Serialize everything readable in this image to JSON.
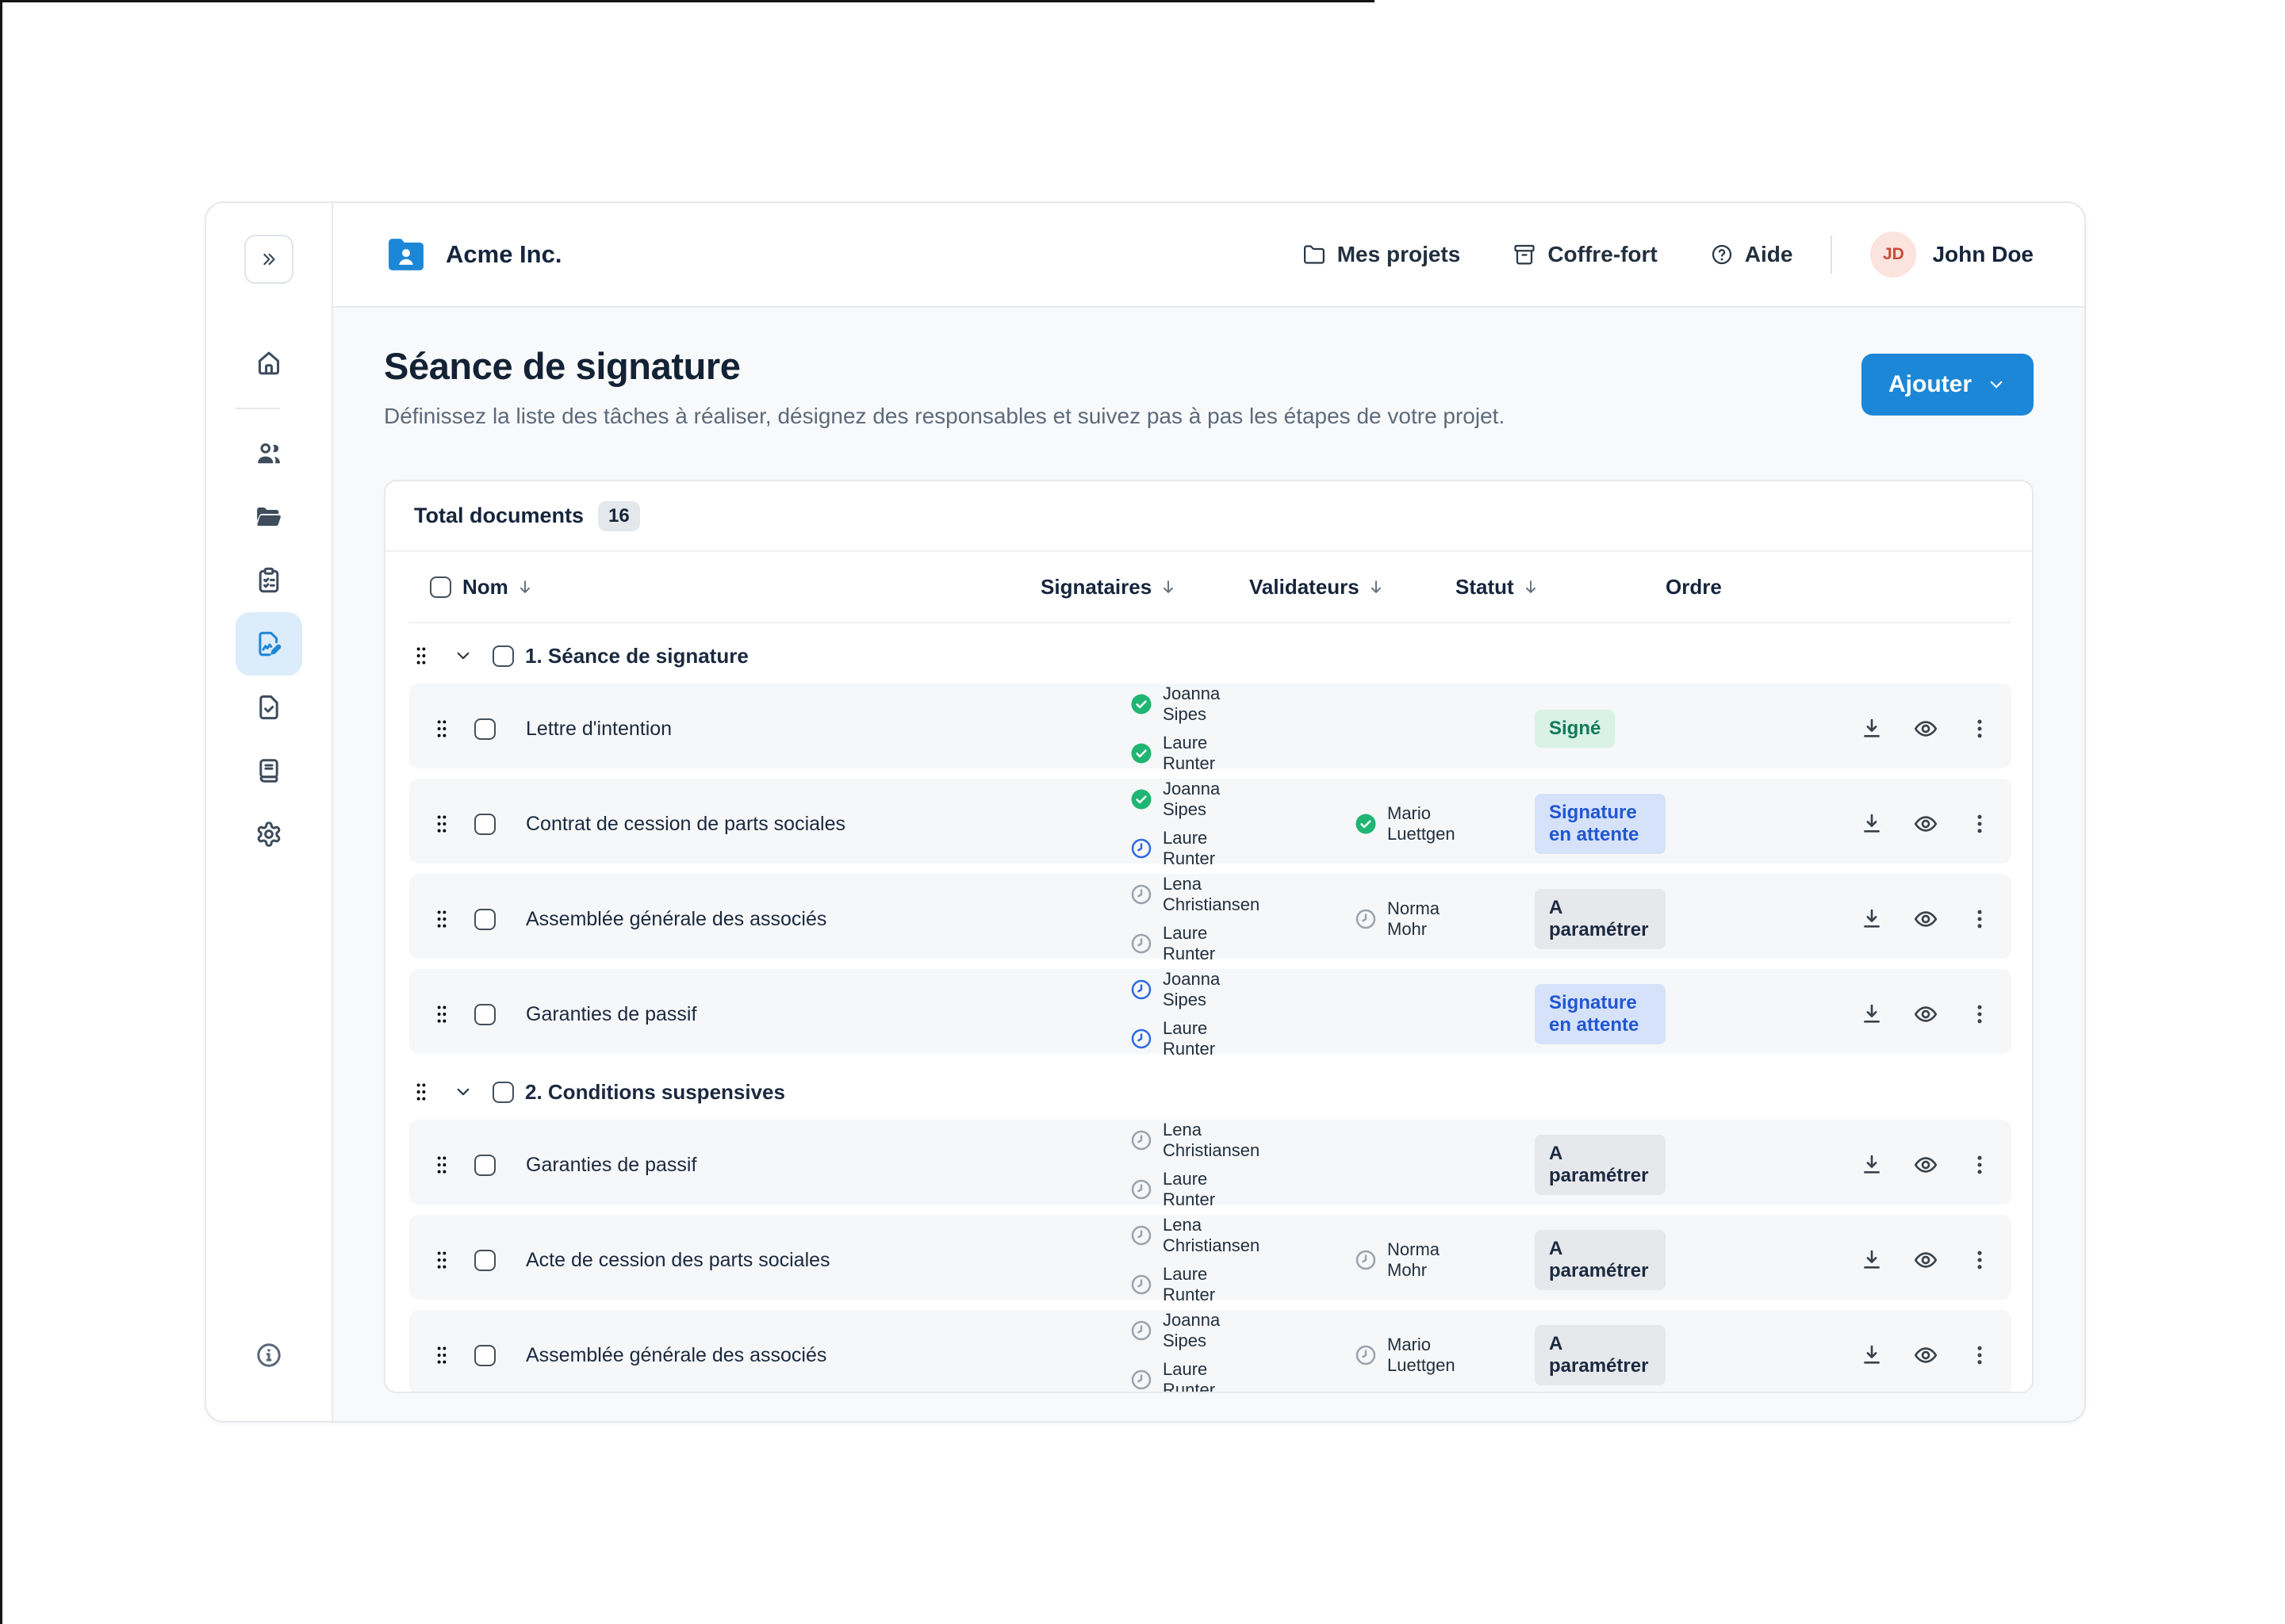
{
  "header": {
    "company": "Acme Inc.",
    "nav": [
      {
        "id": "mes-projets",
        "label": "Mes projets",
        "icon": "folder"
      },
      {
        "id": "coffre-fort",
        "label": "Coffre-fort",
        "icon": "vault"
      },
      {
        "id": "aide",
        "label": "Aide",
        "icon": "help"
      }
    ],
    "user": {
      "initials": "JD",
      "name": "John Doe"
    }
  },
  "sidebar": {
    "items": [
      {
        "id": "home",
        "icon": "home",
        "active": false
      },
      {
        "id": "contacts",
        "icon": "users",
        "active": false
      },
      {
        "id": "documents",
        "icon": "folder-open",
        "active": false
      },
      {
        "id": "tasks",
        "icon": "clipboard-list",
        "active": false
      },
      {
        "id": "signature",
        "icon": "file-pen",
        "active": true
      },
      {
        "id": "validated-docs",
        "icon": "file-check",
        "active": false
      },
      {
        "id": "registers",
        "icon": "book",
        "active": false
      },
      {
        "id": "settings",
        "icon": "settings",
        "active": false
      }
    ]
  },
  "page": {
    "title": "Séance de signature",
    "subtitle": "Définissez la liste des tâches à réaliser, désignez des responsables et suivez pas à pas les étapes de votre projet.",
    "add_button_label": "Ajouter"
  },
  "table": {
    "summary_label": "Total documents",
    "summary_count": "16",
    "columns": [
      {
        "id": "nom",
        "label": "Nom",
        "sortable": true
      },
      {
        "id": "signataires",
        "label": "Signataires",
        "sortable": true
      },
      {
        "id": "validateurs",
        "label": "Validateurs",
        "sortable": true
      },
      {
        "id": "statut",
        "label": "Statut",
        "sortable": true
      },
      {
        "id": "ordre",
        "label": "Ordre",
        "sortable": false
      }
    ],
    "groups": [
      {
        "label": "1. Séance de signature",
        "documents": [
          {
            "name": "Lettre d'intention",
            "signataires": [
              {
                "name": "Joanna Sipes",
                "status": "signed"
              },
              {
                "name": "Laure Runter",
                "status": "signed"
              }
            ],
            "validateurs": [],
            "statut": {
              "label": "Signé",
              "type": "signed"
            }
          },
          {
            "name": "Contrat de cession de parts sociales",
            "signataires": [
              {
                "name": "Joanna Sipes",
                "status": "signed"
              },
              {
                "name": "Laure Runter",
                "status": "waiting"
              }
            ],
            "validateurs": [
              {
                "name": "Mario Luettgen",
                "status": "signed"
              }
            ],
            "statut": {
              "label": "Signature en attente",
              "type": "waiting"
            }
          },
          {
            "name": "Assemblée générale des associés",
            "signataires": [
              {
                "name": "Lena Christiansen",
                "status": "todo"
              },
              {
                "name": "Laure Runter",
                "status": "todo"
              }
            ],
            "validateurs": [
              {
                "name": "Norma Mohr",
                "status": "todo"
              }
            ],
            "statut": {
              "label": "A paramétrer",
              "type": "setup"
            }
          },
          {
            "name": "Garanties de passif",
            "signataires": [
              {
                "name": "Joanna Sipes",
                "status": "waiting"
              },
              {
                "name": "Laure Runter",
                "status": "waiting"
              }
            ],
            "validateurs": [],
            "statut": {
              "label": "Signature en attente",
              "type": "waiting"
            }
          }
        ]
      },
      {
        "label": "2. Conditions suspensives",
        "documents": [
          {
            "name": "Garanties de passif",
            "signataires": [
              {
                "name": "Lena Christiansen",
                "status": "todo"
              },
              {
                "name": "Laure Runter",
                "status": "todo"
              }
            ],
            "validateurs": [],
            "statut": {
              "label": "A paramétrer",
              "type": "setup"
            }
          },
          {
            "name": "Acte de cession des parts sociales",
            "signataires": [
              {
                "name": "Lena Christiansen",
                "status": "todo"
              },
              {
                "name": "Laure Runter",
                "status": "todo"
              }
            ],
            "validateurs": [
              {
                "name": "Norma Mohr",
                "status": "todo"
              }
            ],
            "statut": {
              "label": "A paramétrer",
              "type": "setup"
            }
          },
          {
            "name": "Assemblée générale des associés",
            "signataires": [
              {
                "name": "Joanna Sipes",
                "status": "todo"
              },
              {
                "name": "Laure Runter",
                "status": "todo"
              }
            ],
            "validateurs": [
              {
                "name": "Mario Luettgen",
                "status": "todo"
              }
            ],
            "statut": {
              "label": "A paramétrer",
              "type": "setup"
            }
          }
        ]
      }
    ]
  },
  "colors": {
    "accent_blue": "#1d87d7",
    "active_item_bg": "#dcecfa",
    "status_signed_bg": "#d9f1e6",
    "status_signed_text": "#117a58",
    "status_waiting_bg": "#d6e2f9",
    "status_waiting_text": "#2156d3",
    "status_setup_bg": "#e6e8ec",
    "status_setup_text": "#1b2940",
    "signer_signed_icon": "#1fb573",
    "signer_waiting_icon": "#2e6ae0",
    "signer_todo_icon": "#9aa3ad",
    "avatar_bg": "#fbe4dd",
    "avatar_text": "#cc4a38"
  }
}
